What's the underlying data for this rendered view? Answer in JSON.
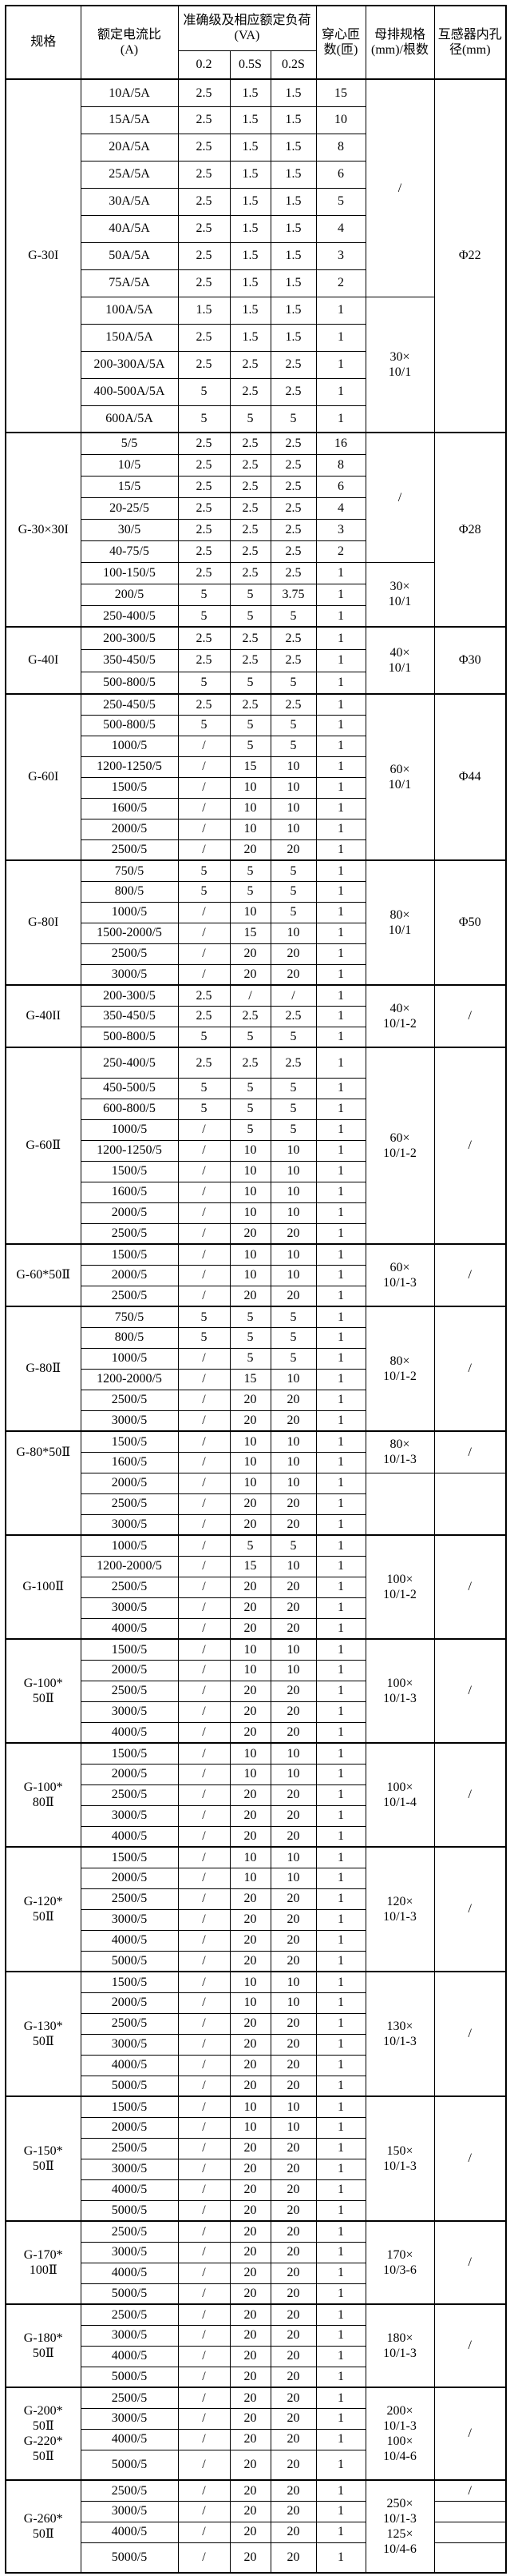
{
  "header": {
    "col_spec": "规格",
    "col_ratio": "额定电流比\n(A)",
    "col_accuracy": "准确级及相应额定负荷(VA)",
    "col_acc_sub": [
      "0.2",
      "0.5S",
      "0.2S"
    ],
    "col_turns": "穿心匝数(匝)",
    "col_busbar": "母排规格(mm)/根数",
    "col_hole": "互感器内孔径(mm)"
  },
  "chart_data": {
    "type": "table"
  },
  "sections": [
    {
      "spec": "G-30I",
      "rows": [
        [
          "10A/5A",
          "2.5",
          "1.5",
          "1.5",
          "15"
        ],
        [
          "15A/5A",
          "2.5",
          "1.5",
          "1.5",
          "10"
        ],
        [
          "20A/5A",
          "2.5",
          "1.5",
          "1.5",
          "8"
        ],
        [
          "25A/5A",
          "2.5",
          "1.5",
          "1.5",
          "6"
        ],
        [
          "30A/5A",
          "2.5",
          "1.5",
          "1.5",
          "5"
        ],
        [
          "40A/5A",
          "2.5",
          "1.5",
          "1.5",
          "4"
        ],
        [
          "50A/5A",
          "2.5",
          "1.5",
          "1.5",
          "3"
        ],
        [
          "75A/5A",
          "2.5",
          "1.5",
          "1.5",
          "2"
        ],
        [
          "100A/5A",
          "1.5",
          "1.5",
          "1.5",
          "1"
        ],
        [
          "150A/5A",
          "2.5",
          "1.5",
          "1.5",
          "1"
        ],
        [
          "200-300A/5A",
          "2.5",
          "2.5",
          "2.5",
          "1"
        ],
        [
          "400-500A/5A",
          "5",
          "2.5",
          "2.5",
          "1"
        ],
        [
          "600A/5A",
          "5",
          "5",
          "5",
          "1"
        ]
      ],
      "busbar": [
        {
          "text": "/",
          "span": 8
        },
        {
          "text": "30×\n10/1",
          "span": 5
        }
      ],
      "hole": [
        {
          "text": "Φ22",
          "span": 13
        }
      ]
    },
    {
      "spec": "G-30×30I",
      "rows": [
        [
          "5/5",
          "2.5",
          "2.5",
          "2.5",
          "16"
        ],
        [
          "10/5",
          "2.5",
          "2.5",
          "2.5",
          "8"
        ],
        [
          "15/5",
          "2.5",
          "2.5",
          "2.5",
          "6"
        ],
        [
          "20-25/5",
          "2.5",
          "2.5",
          "2.5",
          "4"
        ],
        [
          "30/5",
          "2.5",
          "2.5",
          "2.5",
          "3"
        ],
        [
          "40-75/5",
          "2.5",
          "2.5",
          "2.5",
          "2"
        ],
        [
          "100-150/5",
          "2.5",
          "2.5",
          "2.5",
          "1"
        ],
        [
          "200/5",
          "5",
          "5",
          "3.75",
          "1"
        ],
        [
          "250-400/5",
          "5",
          "5",
          "5",
          "1"
        ]
      ],
      "busbar": [
        {
          "text": "/",
          "span": 6
        },
        {
          "text": "30×\n10/1",
          "span": 3
        }
      ],
      "hole": [
        {
          "text": "Φ28",
          "span": 9
        }
      ]
    },
    {
      "spec": "G-40I",
      "rows": [
        [
          "200-300/5",
          "2.5",
          "2.5",
          "2.5",
          "1"
        ],
        [
          "350-450/5",
          "2.5",
          "2.5",
          "2.5",
          "1"
        ],
        [
          "500-800/5",
          "5",
          "5",
          "5",
          "1"
        ]
      ],
      "busbar": [
        {
          "text": "40×\n10/1",
          "span": 3
        }
      ],
      "hole": [
        {
          "text": "Φ30",
          "span": 3
        }
      ]
    },
    {
      "spec": "G-60I",
      "rows": [
        [
          "250-450/5",
          "2.5",
          "2.5",
          "2.5",
          "1"
        ],
        [
          "500-800/5",
          "5",
          "5",
          "5",
          "1"
        ],
        [
          "1000/5",
          "/",
          "5",
          "5",
          "1"
        ],
        [
          "1200-1250/5",
          "/",
          "15",
          "10",
          "1"
        ],
        [
          "1500/5",
          "/",
          "10",
          "10",
          "1"
        ],
        [
          "1600/5",
          "/",
          "10",
          "10",
          "1"
        ],
        [
          "2000/5",
          "/",
          "10",
          "10",
          "1"
        ],
        [
          "2500/5",
          "/",
          "20",
          "20",
          "1"
        ]
      ],
      "busbar": [
        {
          "text": "60×\n10/1",
          "span": 8
        }
      ],
      "hole": [
        {
          "text": "Φ44",
          "span": 8
        }
      ]
    },
    {
      "spec": "G-80I",
      "rows": [
        [
          "750/5",
          "5",
          "5",
          "5",
          "1"
        ],
        [
          "800/5",
          "5",
          "5",
          "5",
          "1"
        ],
        [
          "1000/5",
          "/",
          "10",
          "5",
          "1"
        ],
        [
          "1500-2000/5",
          "/",
          "15",
          "10",
          "1"
        ],
        [
          "2500/5",
          "/",
          "20",
          "20",
          "1"
        ],
        [
          "3000/5",
          "/",
          "20",
          "20",
          "1"
        ]
      ],
      "busbar": [
        {
          "text": "80×\n10/1",
          "span": 6
        }
      ],
      "hole": [
        {
          "text": "Φ50",
          "span": 6
        }
      ]
    },
    {
      "spec": "G-40II",
      "rows": [
        [
          "200-300/5",
          "2.5",
          "/",
          "/",
          "1"
        ],
        [
          "350-450/5",
          "2.5",
          "2.5",
          "2.5",
          "1"
        ],
        [
          "500-800/5",
          "5",
          "5",
          "5",
          "1"
        ]
      ],
      "busbar": [
        {
          "text": "40×\n10/1-2",
          "span": 3
        }
      ],
      "hole": [
        {
          "text": "/",
          "span": 3
        }
      ]
    },
    {
      "spec": "G-60Ⅱ",
      "rows": [
        [
          "250-400/5",
          "2.5",
          "2.5",
          "2.5",
          "1"
        ],
        [
          "450-500/5",
          "5",
          "5",
          "5",
          "1"
        ],
        [
          "600-800/5",
          "5",
          "5",
          "5",
          "1"
        ],
        [
          "1000/5",
          "/",
          "5",
          "5",
          "1"
        ],
        [
          "1200-1250/5",
          "/",
          "10",
          "10",
          "1"
        ],
        [
          "1500/5",
          "/",
          "10",
          "10",
          "1"
        ],
        [
          "1600/5",
          "/",
          "10",
          "10",
          "1"
        ],
        [
          "2000/5",
          "/",
          "10",
          "10",
          "1"
        ],
        [
          "2500/5",
          "/",
          "20",
          "20",
          "1"
        ]
      ],
      "busbar": [
        {
          "text": "60×\n10/1-2",
          "span": 9
        }
      ],
      "hole": [
        {
          "text": "/",
          "span": 9
        }
      ]
    },
    {
      "spec": "G-60*50Ⅱ",
      "rows": [
        [
          "1500/5",
          "/",
          "10",
          "10",
          "1"
        ],
        [
          "2000/5",
          "/",
          "10",
          "10",
          "1"
        ],
        [
          "2500/5",
          "/",
          "20",
          "20",
          "1"
        ]
      ],
      "busbar": [
        {
          "text": "60×\n10/1-3",
          "span": 3
        }
      ],
      "hole": [
        {
          "text": "/",
          "span": 3
        }
      ]
    },
    {
      "spec": "G-80Ⅱ",
      "rows": [
        [
          "750/5",
          "5",
          "5",
          "5",
          "1"
        ],
        [
          "800/5",
          "5",
          "5",
          "5",
          "1"
        ],
        [
          "1000/5",
          "/",
          "5",
          "5",
          "1"
        ],
        [
          "1200-2000/5",
          "/",
          "15",
          "10",
          "1"
        ],
        [
          "2500/5",
          "/",
          "20",
          "20",
          "1"
        ],
        [
          "3000/5",
          "/",
          "20",
          "20",
          "1"
        ]
      ],
      "busbar": [
        {
          "text": "80×\n10/1-2",
          "span": 6
        }
      ],
      "hole": [
        {
          "text": "/",
          "span": 6
        }
      ]
    },
    {
      "spec": "G-80*50Ⅱ",
      "spec_span": 2,
      "rows": [
        [
          "1500/5",
          "/",
          "10",
          "10",
          "1"
        ],
        [
          "1600/5",
          "/",
          "10",
          "10",
          "1"
        ],
        [
          "2000/5",
          "/",
          "10",
          "10",
          "1"
        ],
        [
          "2500/5",
          "/",
          "20",
          "20",
          "1"
        ],
        [
          "3000/5",
          "/",
          "20",
          "20",
          "1"
        ]
      ],
      "busbar": [
        {
          "text": "80×\n10/1-3",
          "span": 2
        },
        {
          "text": "",
          "span": 3
        }
      ],
      "hole": [
        {
          "text": "/",
          "span": 2
        },
        {
          "text": "",
          "span": 3
        }
      ]
    },
    {
      "spec": "G-100Ⅱ",
      "rows": [
        [
          "1000/5",
          "/",
          "5",
          "5",
          "1"
        ],
        [
          "1200-2000/5",
          "/",
          "15",
          "10",
          "1"
        ],
        [
          "2500/5",
          "/",
          "20",
          "20",
          "1"
        ],
        [
          "3000/5",
          "/",
          "20",
          "20",
          "1"
        ],
        [
          "4000/5",
          "/",
          "20",
          "20",
          "1"
        ]
      ],
      "busbar": [
        {
          "text": "100×\n10/1-2",
          "span": 5
        }
      ],
      "hole": [
        {
          "text": "/",
          "span": 5
        }
      ]
    },
    {
      "spec": "G-100*\n50Ⅱ",
      "rows": [
        [
          "1500/5",
          "/",
          "10",
          "10",
          "1"
        ],
        [
          "2000/5",
          "/",
          "10",
          "10",
          "1"
        ],
        [
          "2500/5",
          "/",
          "20",
          "20",
          "1"
        ],
        [
          "3000/5",
          "/",
          "20",
          "20",
          "1"
        ],
        [
          "4000/5",
          "/",
          "20",
          "20",
          "1"
        ]
      ],
      "busbar": [
        {
          "text": "100×\n10/1-3",
          "span": 5
        }
      ],
      "hole": [
        {
          "text": "/",
          "span": 5
        }
      ]
    },
    {
      "spec": "G-100*\n80Ⅱ",
      "rows": [
        [
          "1500/5",
          "/",
          "10",
          "10",
          "1"
        ],
        [
          "2000/5",
          "/",
          "10",
          "10",
          "1"
        ],
        [
          "2500/5",
          "/",
          "20",
          "20",
          "1"
        ],
        [
          "3000/5",
          "/",
          "20",
          "20",
          "1"
        ],
        [
          "4000/5",
          "/",
          "20",
          "20",
          "1"
        ]
      ],
      "busbar": [
        {
          "text": "100×\n10/1-4",
          "span": 5
        }
      ],
      "hole": [
        {
          "text": "/",
          "span": 5
        }
      ]
    },
    {
      "spec": "G-120*\n50Ⅱ",
      "rows": [
        [
          "1500/5",
          "/",
          "10",
          "10",
          "1"
        ],
        [
          "2000/5",
          "/",
          "10",
          "10",
          "1"
        ],
        [
          "2500/5",
          "/",
          "20",
          "20",
          "1"
        ],
        [
          "3000/5",
          "/",
          "20",
          "20",
          "1"
        ],
        [
          "4000/5",
          "/",
          "20",
          "20",
          "1"
        ],
        [
          "5000/5",
          "/",
          "20",
          "20",
          "1"
        ]
      ],
      "busbar": [
        {
          "text": "120×\n10/1-3",
          "span": 6
        }
      ],
      "hole": [
        {
          "text": "/",
          "span": 6
        }
      ]
    },
    {
      "spec": "G-130*\n50Ⅱ",
      "rows": [
        [
          "1500/5",
          "/",
          "10",
          "10",
          "1"
        ],
        [
          "2000/5",
          "/",
          "10",
          "10",
          "1"
        ],
        [
          "2500/5",
          "/",
          "20",
          "20",
          "1"
        ],
        [
          "3000/5",
          "/",
          "20",
          "20",
          "1"
        ],
        [
          "4000/5",
          "/",
          "20",
          "20",
          "1"
        ],
        [
          "5000/5",
          "/",
          "20",
          "20",
          "1"
        ]
      ],
      "busbar": [
        {
          "text": "130×\n10/1-3",
          "span": 6
        }
      ],
      "hole": [
        {
          "text": "/",
          "span": 6
        }
      ]
    },
    {
      "spec": "G-150*\n50Ⅱ",
      "rows": [
        [
          "1500/5",
          "/",
          "10",
          "10",
          "1"
        ],
        [
          "2000/5",
          "/",
          "10",
          "10",
          "1"
        ],
        [
          "2500/5",
          "/",
          "20",
          "20",
          "1"
        ],
        [
          "3000/5",
          "/",
          "20",
          "20",
          "1"
        ],
        [
          "4000/5",
          "/",
          "20",
          "20",
          "1"
        ],
        [
          "5000/5",
          "/",
          "20",
          "20",
          "1"
        ]
      ],
      "busbar": [
        {
          "text": "150×\n10/1-3",
          "span": 6
        }
      ],
      "hole": [
        {
          "text": "/",
          "span": 6
        }
      ]
    },
    {
      "spec": "G-170*\n100Ⅱ",
      "rows": [
        [
          "2500/5",
          "/",
          "20",
          "20",
          "1"
        ],
        [
          "3000/5",
          "/",
          "20",
          "20",
          "1"
        ],
        [
          "4000/5",
          "/",
          "20",
          "20",
          "1"
        ],
        [
          "5000/5",
          "/",
          "20",
          "20",
          "1"
        ]
      ],
      "busbar": [
        {
          "text": "170×\n10/3-6",
          "span": 4
        }
      ],
      "hole": [
        {
          "text": "/",
          "span": 4
        }
      ]
    },
    {
      "spec": "G-180*\n50Ⅱ",
      "rows": [
        [
          "2500/5",
          "/",
          "20",
          "20",
          "1"
        ],
        [
          "3000/5",
          "/",
          "20",
          "20",
          "1"
        ],
        [
          "4000/5",
          "/",
          "20",
          "20",
          "1"
        ],
        [
          "5000/5",
          "/",
          "20",
          "20",
          "1"
        ]
      ],
      "busbar": [
        {
          "text": "180×\n10/1-3",
          "span": 4
        }
      ],
      "hole": [
        {
          "text": "/",
          "span": 4
        }
      ]
    },
    {
      "spec": "G-200*\n50Ⅱ\nG-220*\n50Ⅱ",
      "rows": [
        [
          "2500/5",
          "/",
          "20",
          "20",
          "1"
        ],
        [
          "3000/5",
          "/",
          "20",
          "20",
          "1"
        ],
        [
          "4000/5",
          "/",
          "20",
          "20",
          "1"
        ],
        [
          "5000/5",
          "/",
          "20",
          "20",
          "1"
        ]
      ],
      "busbar": [
        {
          "text": "200×\n10/1-3\n100×\n10/4-6",
          "span": 4
        }
      ],
      "hole": [
        {
          "text": "/",
          "span": 4
        }
      ]
    },
    {
      "spec": "G-260*\n50Ⅱ",
      "rows": [
        [
          "2500/5",
          "/",
          "20",
          "20",
          "1"
        ],
        [
          "3000/5",
          "/",
          "20",
          "20",
          "1"
        ],
        [
          "4000/5",
          "/",
          "20",
          "20",
          "1"
        ],
        [
          "5000/5",
          "/",
          "20",
          "20",
          "1"
        ]
      ],
      "busbar": [
        {
          "text": "250×\n10/1-3\n125×\n10/4-6",
          "span": 4
        }
      ],
      "hole": [
        {
          "text": "/",
          "span": 1
        },
        {
          "text": "",
          "span": 1
        },
        {
          "text": "",
          "span": 1
        },
        {
          "text": "",
          "span": 1
        }
      ]
    }
  ]
}
